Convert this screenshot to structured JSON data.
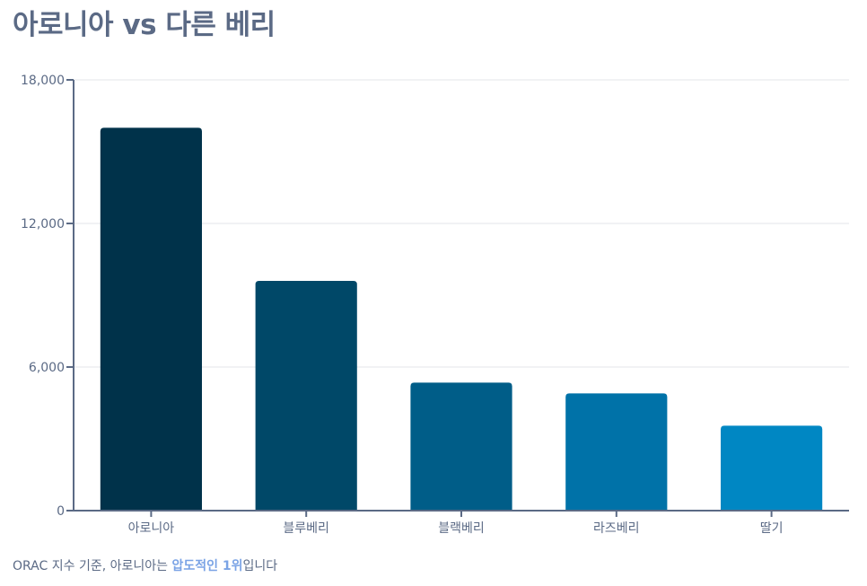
{
  "title": "아로니아 vs 다른 베리",
  "caption": {
    "prefix": "ORAC 지수 기준, 아로니아는 ",
    "highlight": "압도적인 1위",
    "suffix": "입니다"
  },
  "colors": {
    "title": "#5b6a85",
    "highlight": "#7aa3e5",
    "bars": [
      "#00324a",
      "#004868",
      "#005d88",
      "#0072a8",
      "#0087c3"
    ]
  },
  "chart_data": {
    "type": "bar",
    "categories": [
      "아로니아",
      "블루베리",
      "블랙베리",
      "라즈베리",
      "딸기"
    ],
    "values": [
      16000,
      9600,
      5350,
      4900,
      3550
    ],
    "ylim": [
      0,
      18000
    ],
    "yticks": [
      0,
      6000,
      12000,
      18000
    ],
    "ytick_labels": [
      "0",
      "6,000",
      "12,000",
      "18,000"
    ],
    "grid": true,
    "xlabel": "",
    "ylabel": ""
  }
}
